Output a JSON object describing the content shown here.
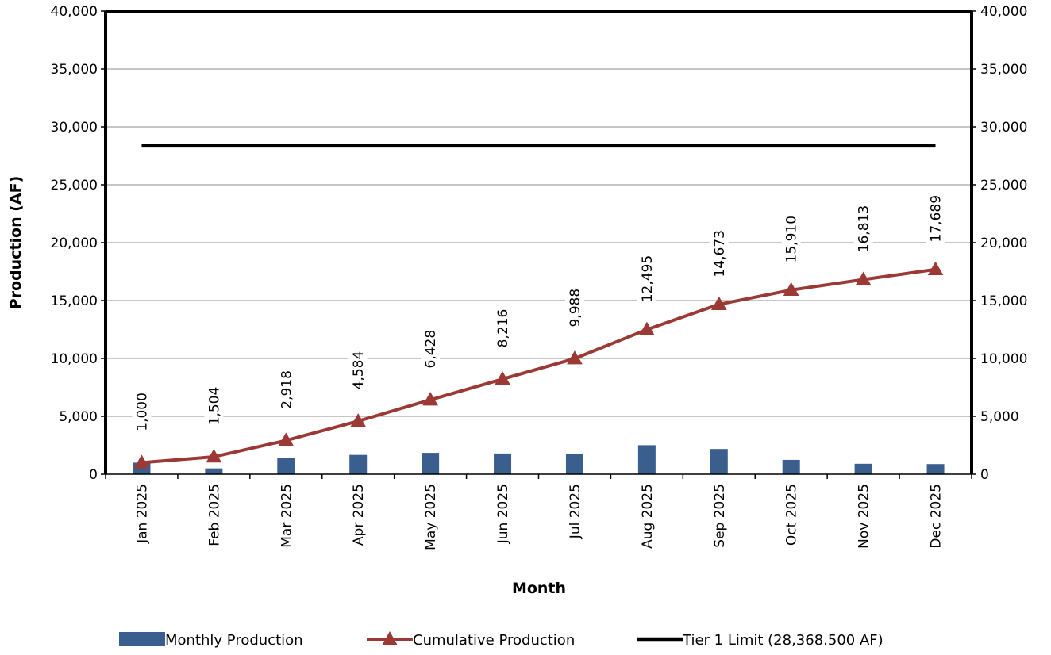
{
  "chart_data": {
    "type": "bar",
    "categories": [
      "Jan 2025",
      "Feb 2025",
      "Mar 2025",
      "Apr 2025",
      "May 2025",
      "Jun 2025",
      "Jul 2025",
      "Aug 2025",
      "Sep 2025",
      "Oct 2025",
      "Nov 2025",
      "Dec 2025"
    ],
    "series": [
      {
        "name": "Monthly Production",
        "type": "bar",
        "color": "#3A5F8F",
        "values": [
          1000,
          504,
          1414,
          1666,
          1844,
          1788,
          1772,
          2507,
          2178,
          1237,
          903,
          876
        ]
      },
      {
        "name": "Cumulative Production",
        "type": "line",
        "marker": "triangle",
        "color": "#9B3A35",
        "values": [
          1000,
          1504,
          2918,
          4584,
          6428,
          8216,
          9988,
          12495,
          14673,
          15910,
          16813,
          17689
        ],
        "data_labels": [
          "1,000",
          "1,504",
          "2,918",
          "4,584",
          "6,428",
          "8,216",
          "9,988",
          "12,495",
          "14,673",
          "15,910",
          "16,813",
          "17,689"
        ]
      },
      {
        "name": "Tier 1 Limit (28,368.500 AF)",
        "type": "line",
        "color": "#000000",
        "values": [
          28368.5,
          28368.5,
          28368.5,
          28368.5,
          28368.5,
          28368.5,
          28368.5,
          28368.5,
          28368.5,
          28368.5,
          28368.5,
          28368.5
        ]
      }
    ],
    "xlabel": "Month",
    "ylabel": "Production (AF)",
    "ylim": [
      0,
      40000
    ],
    "yticks": [
      0,
      5000,
      10000,
      15000,
      20000,
      25000,
      30000,
      35000,
      40000
    ],
    "ytick_labels": [
      "0",
      "5,000",
      "10,000",
      "15,000",
      "20,000",
      "25,000",
      "30,000",
      "35,000",
      "40,000"
    ],
    "secondary_ylim": [
      0,
      40000
    ],
    "grid": true,
    "legend_position": "bottom"
  }
}
